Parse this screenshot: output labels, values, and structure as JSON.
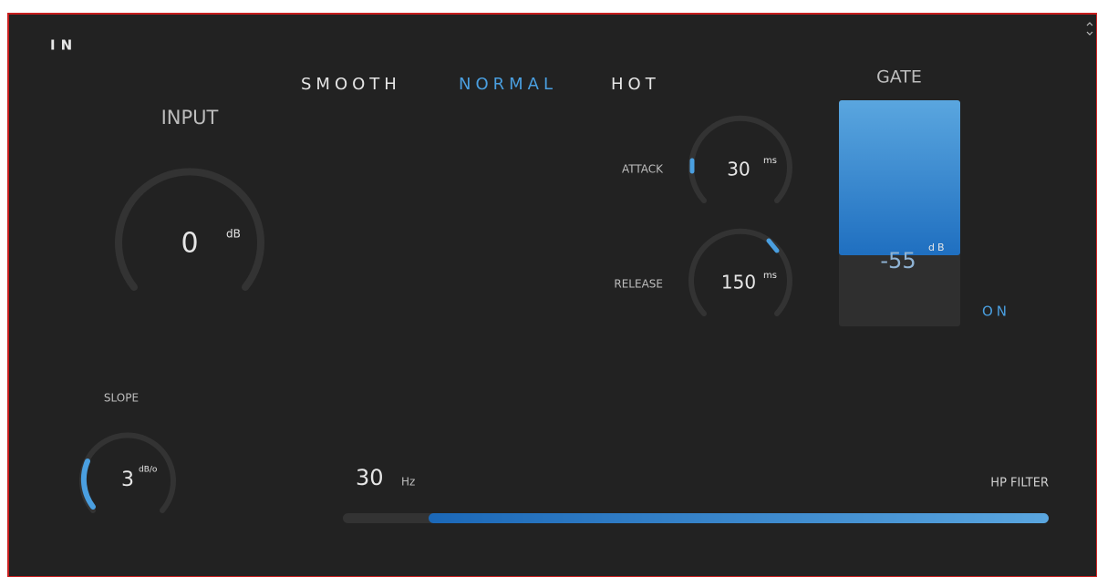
{
  "header": {
    "title": "IN"
  },
  "modes": [
    "SMOOTH",
    "NORMAL",
    "HOT"
  ],
  "input": {
    "label": "INPUT",
    "value": "0",
    "unit": "dB"
  },
  "attack": {
    "label": "ATTACK",
    "value": "30",
    "unit": "ms"
  },
  "release": {
    "label": "RELEASE",
    "value": "150",
    "unit": "ms"
  },
  "gate": {
    "label": "GATE",
    "value": "-55",
    "unit": "dB",
    "state": "ON"
  },
  "slope": {
    "label": "SLOPE",
    "value": "3",
    "unit": "dB/o"
  },
  "hp_filter": {
    "label": "HP FILTER",
    "value": "30",
    "unit": "Hz"
  }
}
